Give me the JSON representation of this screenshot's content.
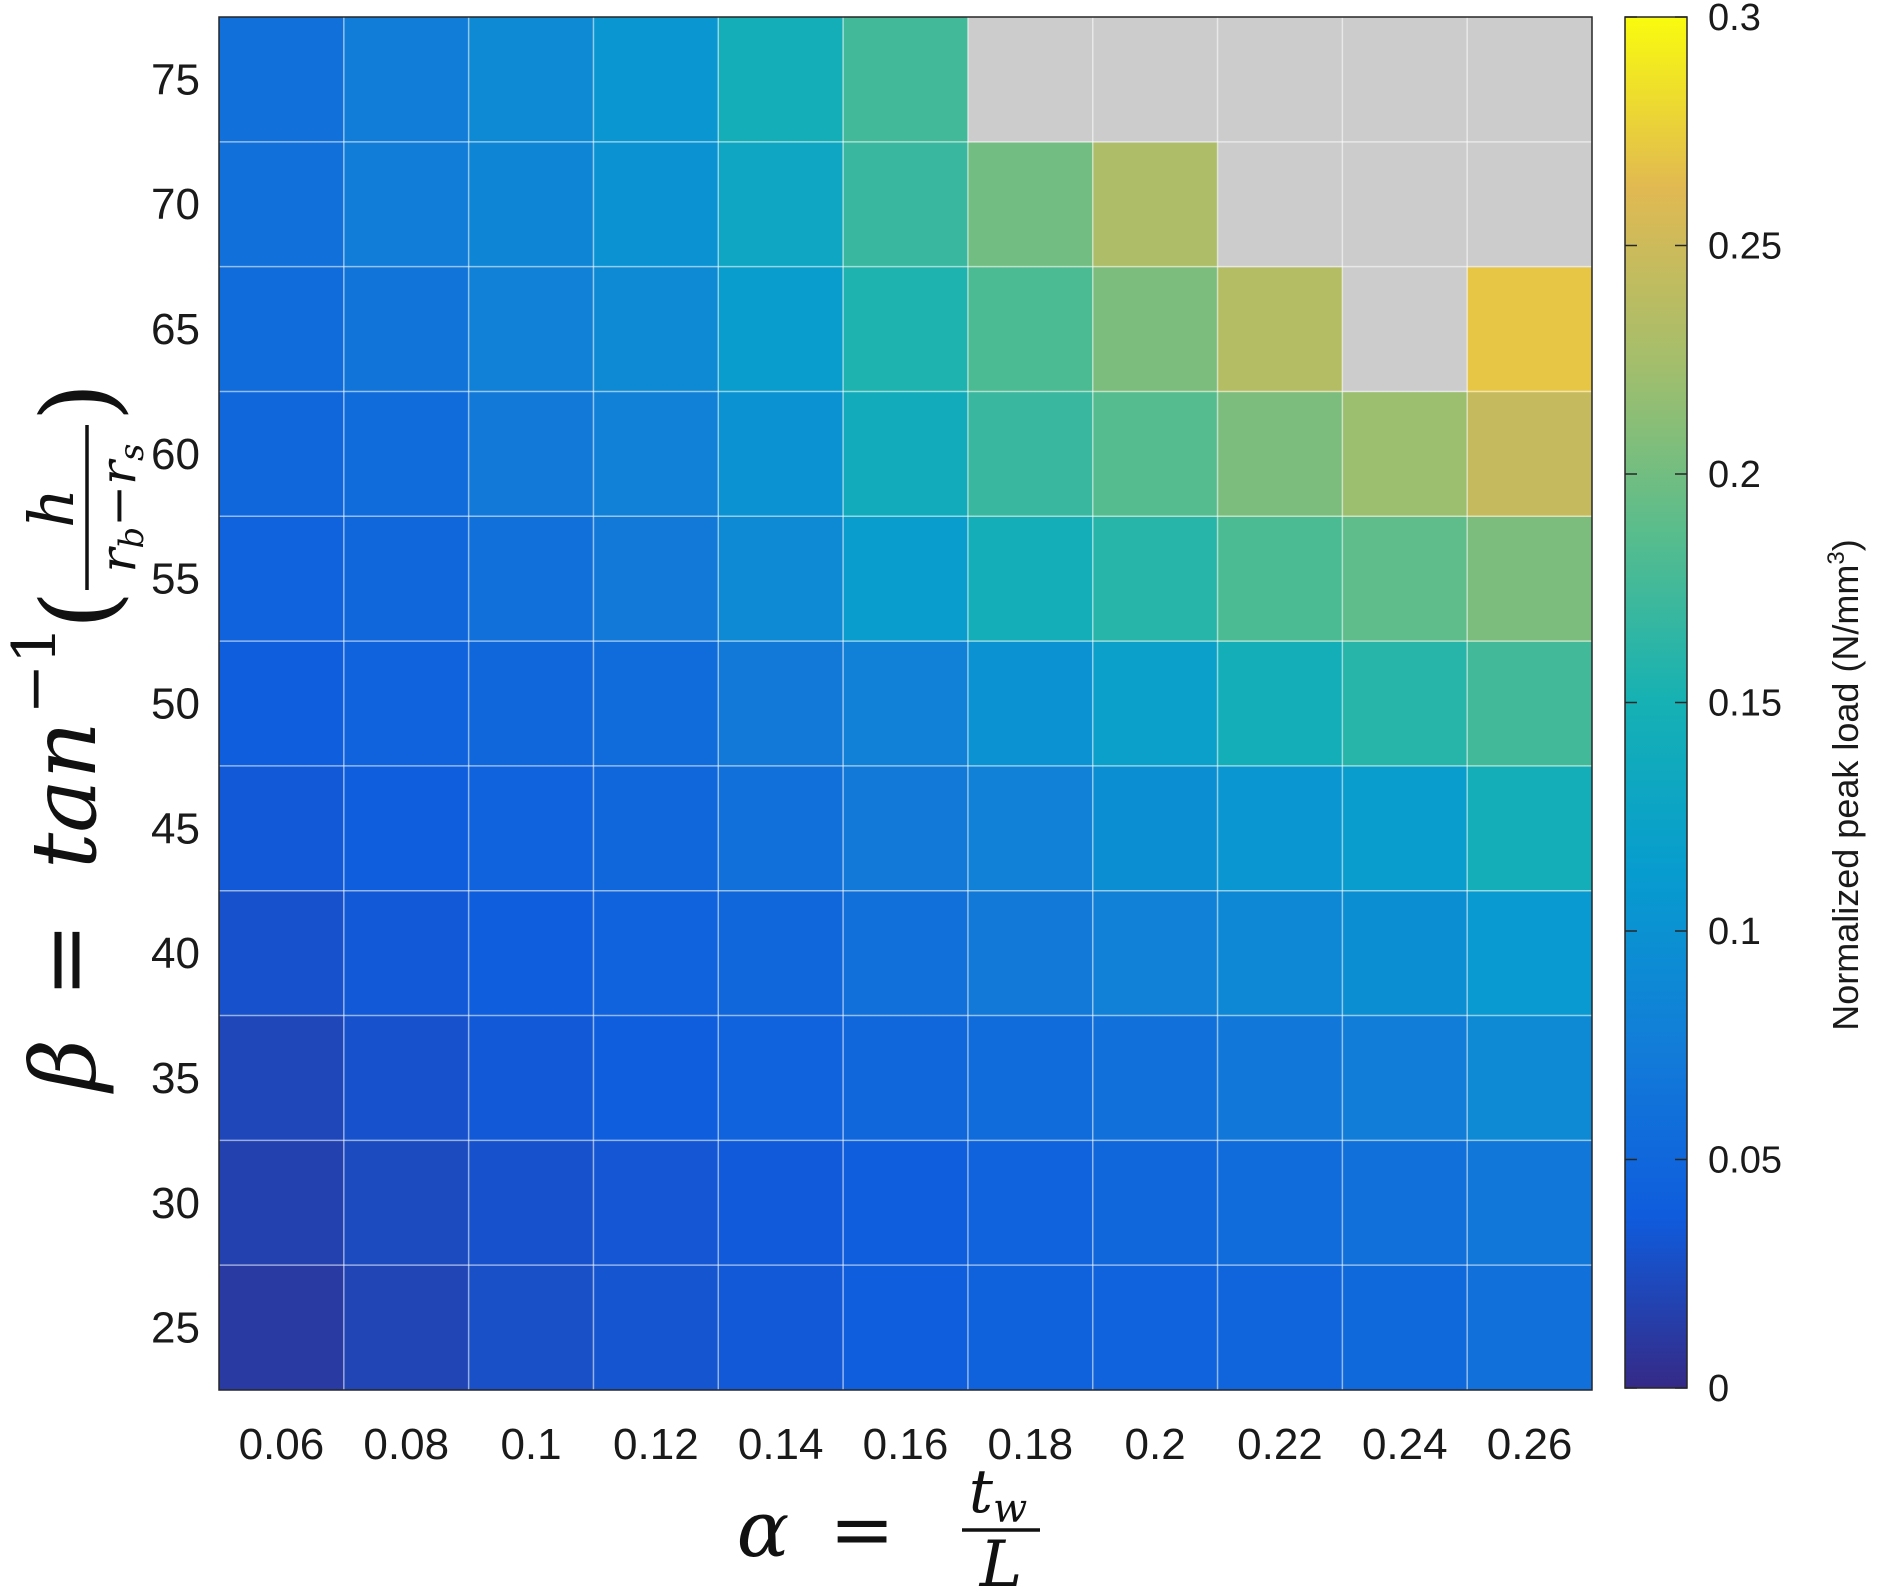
{
  "chart_data": {
    "type": "heatmap",
    "title": "",
    "x": [
      0.06,
      0.08,
      0.1,
      0.12,
      0.14,
      0.16,
      0.18,
      0.2,
      0.22,
      0.24,
      0.26
    ],
    "x_tick_labels": [
      "0.06",
      "0.08",
      "0.1",
      "0.12",
      "0.14",
      "0.16",
      "0.18",
      "0.2",
      "0.22",
      "0.24",
      "0.26"
    ],
    "y": [
      25,
      30,
      35,
      40,
      45,
      50,
      55,
      60,
      65,
      70,
      75
    ],
    "y_tick_labels": [
      "25",
      "30",
      "35",
      "40",
      "45",
      "50",
      "55",
      "60",
      "65",
      "70",
      "75"
    ],
    "xlabel": {
      "lhs": "α",
      "equals": "=",
      "numerator": "t",
      "numerator_sub": "w",
      "denominator": "L"
    },
    "ylabel": {
      "lhs": "β",
      "equals": "=",
      "func": "tan",
      "power": "−1",
      "open_paren": "(",
      "close_paren": ")",
      "numerator": "h",
      "denominator_a": "r",
      "denominator_a_sub": "b",
      "minus": "−",
      "denominator_b": "r",
      "denominator_b_sub": "s"
    },
    "colorbar": {
      "label": "Normalized peak load (N/mm",
      "label_sup": "3",
      "label_close": ")",
      "range": [
        0,
        0.3
      ],
      "ticks": [
        0,
        0.05,
        0.1,
        0.15,
        0.2,
        0.25,
        0.3
      ],
      "tick_labels": [
        "0",
        "0.05",
        "0.1",
        "0.15",
        "0.2",
        "0.25",
        "0.3"
      ],
      "colormap": "parula"
    },
    "missing_color": "#cccccc",
    "grid": true,
    "values": [
      [
        0.012,
        0.02,
        0.028,
        0.032,
        0.035,
        0.04,
        0.043,
        0.045,
        0.048,
        0.052,
        0.06
      ],
      [
        0.018,
        0.025,
        0.03,
        0.033,
        0.036,
        0.04,
        0.045,
        0.05,
        0.055,
        0.06,
        0.068
      ],
      [
        0.022,
        0.03,
        0.035,
        0.04,
        0.045,
        0.05,
        0.055,
        0.06,
        0.068,
        0.075,
        0.09
      ],
      [
        0.03,
        0.035,
        0.04,
        0.045,
        0.05,
        0.06,
        0.07,
        0.08,
        0.088,
        0.095,
        0.11
      ],
      [
        0.035,
        0.04,
        0.045,
        0.05,
        0.06,
        0.07,
        0.08,
        0.095,
        0.105,
        0.115,
        0.145
      ],
      [
        0.04,
        0.045,
        0.05,
        0.055,
        0.07,
        0.08,
        0.1,
        0.12,
        0.145,
        0.16,
        0.175
      ],
      [
        0.045,
        0.05,
        0.06,
        0.07,
        0.09,
        0.115,
        0.145,
        0.16,
        0.18,
        0.19,
        0.205
      ],
      [
        0.05,
        0.055,
        0.07,
        0.08,
        0.1,
        0.14,
        0.17,
        0.185,
        0.205,
        0.22,
        0.245
      ],
      [
        0.055,
        0.065,
        0.08,
        0.09,
        0.115,
        0.155,
        0.18,
        0.205,
        0.235,
        null,
        0.27
      ],
      [
        0.06,
        0.075,
        0.085,
        0.1,
        0.13,
        0.17,
        0.2,
        0.23,
        null,
        null,
        null
      ],
      [
        0.06,
        0.075,
        0.09,
        0.105,
        0.145,
        0.175,
        null,
        null,
        null,
        null,
        null
      ]
    ]
  }
}
